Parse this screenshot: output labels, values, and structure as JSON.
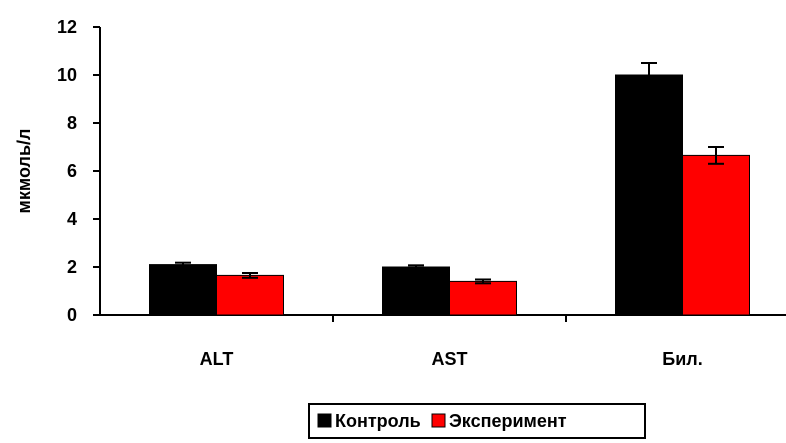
{
  "chart_data": {
    "type": "bar",
    "title": "",
    "xlabel": "",
    "ylabel": "мкмоль/л",
    "categories": [
      "ALT",
      "AST",
      "Бил."
    ],
    "ylim": [
      0,
      12
    ],
    "yticks": [
      0,
      2,
      4,
      6,
      8,
      10,
      12
    ],
    "grid": false,
    "legend": "bottom",
    "series": [
      {
        "name": "Контроль",
        "color": "#000000",
        "values": [
          2.1,
          2.0,
          10.0
        ],
        "errors": [
          0.08,
          0.07,
          0.5
        ]
      },
      {
        "name": "Эксперимент",
        "color": "#ff0000",
        "values": [
          1.65,
          1.4,
          6.65
        ],
        "errors": [
          0.1,
          0.08,
          0.35
        ]
      }
    ]
  }
}
